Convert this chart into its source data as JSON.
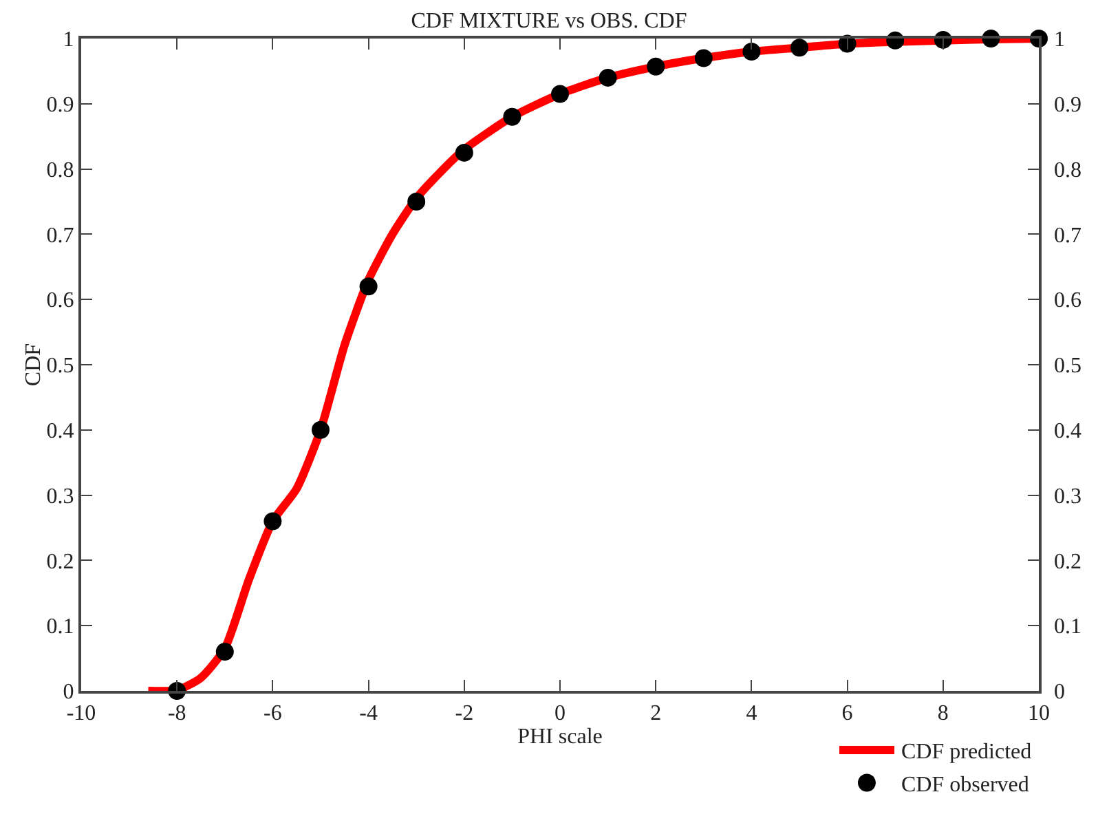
{
  "chart_data": {
    "type": "line",
    "title": "CDF MIXTURE vs OBS. CDF",
    "xlabel": "PHI scale",
    "ylabel": "CDF",
    "series": [
      {
        "name": "CDF predicted",
        "color": "#ff0000",
        "marker": "none",
        "x": [
          -8.6,
          -8,
          -7.5,
          -7,
          -6.5,
          -6,
          -5.5,
          -5,
          -4.5,
          -4,
          -3.5,
          -3,
          -2.5,
          -2,
          -1,
          0,
          1,
          2,
          3,
          4,
          5,
          6,
          7,
          8,
          9,
          10
        ],
        "values": [
          0,
          0.001,
          0.02,
          0.065,
          0.17,
          0.26,
          0.31,
          0.4,
          0.53,
          0.63,
          0.7,
          0.755,
          0.795,
          0.83,
          0.88,
          0.915,
          0.94,
          0.957,
          0.97,
          0.98,
          0.986,
          0.992,
          0.995,
          0.997,
          0.999,
          1
        ]
      },
      {
        "name": "CDF observed",
        "type": "scatter",
        "axis": "y2",
        "color": "#000000",
        "marker": "circle",
        "x": [
          -8,
          -7,
          -6,
          -5,
          -4,
          -3,
          -2,
          -1,
          0,
          1,
          2,
          3,
          4,
          5,
          6,
          7,
          8,
          9,
          10
        ],
        "values": [
          0,
          0.06,
          0.26,
          0.4,
          0.62,
          0.75,
          0.825,
          0.88,
          0.915,
          0.94,
          0.957,
          0.97,
          0.98,
          0.986,
          0.992,
          0.997,
          0.998,
          1,
          1
        ]
      }
    ],
    "xlim": [
      -10,
      10
    ],
    "xticks": [
      -10,
      -8,
      -6,
      -4,
      -2,
      0,
      2,
      4,
      6,
      8,
      10
    ],
    "ylim": [
      0,
      1
    ],
    "yticks": [
      0,
      0.1,
      0.2,
      0.3,
      0.4,
      0.5,
      0.6,
      0.7,
      0.8,
      0.9,
      1
    ],
    "y2lim": [
      0,
      1
    ],
    "y2ticks": [
      0,
      0.1,
      0.2,
      0.3,
      0.4,
      0.5,
      0.6,
      0.7,
      0.8,
      0.9,
      1
    ],
    "grid": false,
    "legend": "bottom right"
  }
}
